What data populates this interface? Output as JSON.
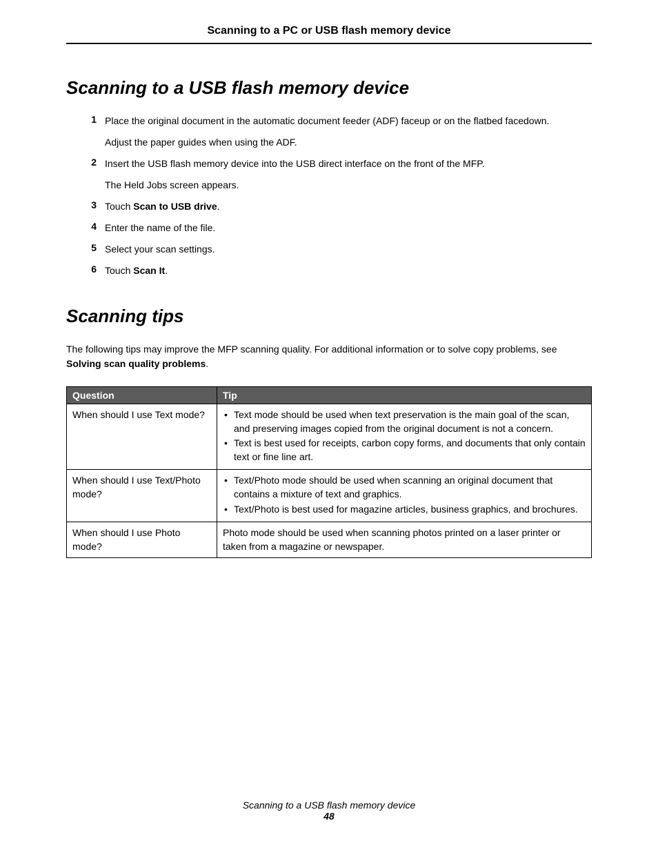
{
  "chapter_header": "Scanning to a PC or USB flash memory device",
  "section1": {
    "title": "Scanning to a USB flash memory device",
    "steps": [
      {
        "n": "1",
        "paras": [
          "Place the original document in the automatic document feeder (ADF) faceup or on the flatbed facedown.",
          "Adjust the paper guides when using the ADF."
        ]
      },
      {
        "n": "2",
        "paras": [
          "Insert the USB flash memory device into the USB direct interface on the front of the MFP.",
          "The Held Jobs screen appears."
        ]
      },
      {
        "n": "3",
        "pre": "Touch ",
        "bold": "Scan to USB drive",
        "post": "."
      },
      {
        "n": "4",
        "plain": "Enter the name of the file."
      },
      {
        "n": "5",
        "plain": "Select your scan settings."
      },
      {
        "n": "6",
        "pre": "Touch ",
        "bold": "Scan It",
        "post": "."
      }
    ]
  },
  "section2": {
    "title": "Scanning tips",
    "intro_pre": "The following tips may improve the MFP scanning quality. For additional information or to solve copy problems, see ",
    "intro_bold": "Solving scan quality problems",
    "intro_post": ".",
    "table": {
      "header_bg": "#5c5c5c",
      "header_fg": "#ffffff",
      "cols": [
        "Question",
        "Tip"
      ],
      "rows": [
        {
          "q": "When should I use Text mode?",
          "bullets": [
            "Text mode should be used when text preservation is the main goal of the scan, and preserving images copied from the original document is not a concern.",
            "Text is best used for receipts, carbon copy forms, and documents that only contain text or fine line art."
          ]
        },
        {
          "q": "When should I use Text/Photo mode?",
          "bullets": [
            "Text/Photo mode should be used when scanning an original document that contains a mixture of text and graphics.",
            "Text/Photo is best used for magazine articles, business graphics, and brochures."
          ]
        },
        {
          "q": "When should I use Photo mode?",
          "plain": "Photo mode should be used when scanning photos printed on a laser printer or taken from a magazine or newspaper."
        }
      ]
    }
  },
  "footer": {
    "title": "Scanning to a USB flash memory device",
    "page": "48"
  }
}
